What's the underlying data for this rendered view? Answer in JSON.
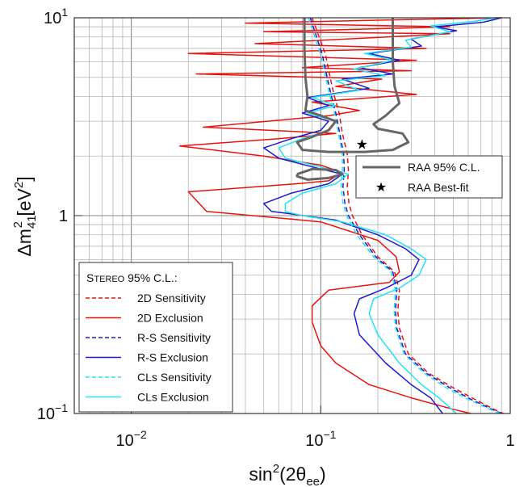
{
  "chart_data": {
    "type": "line",
    "title": "",
    "xlabel": {
      "base": "sin",
      "sup": "2",
      "rest": "(2θ",
      "sub": "ee",
      "close": ")"
    },
    "ylabel": {
      "base": "Δm",
      "sub": "41",
      "sup": "2",
      "unit": " [eV",
      "unit_sup": "2",
      "unit_close": "]"
    },
    "xscale": "log",
    "yscale": "log",
    "xlim": [
      0.005,
      1
    ],
    "ylim": [
      0.1,
      10
    ],
    "x_ticks": [
      {
        "value": 0.01,
        "base": "10",
        "exp": "−2"
      },
      {
        "value": 0.1,
        "base": "10",
        "exp": "−1"
      },
      {
        "value": 1,
        "base": "1",
        "exp": ""
      }
    ],
    "y_ticks": [
      {
        "value": 10,
        "base": "10",
        "exp": "1"
      },
      {
        "value": 1,
        "base": "1",
        "exp": ""
      },
      {
        "value": 0.1,
        "base": "10",
        "exp": "−1"
      }
    ],
    "grid": true,
    "stereo_legend": {
      "title_prefix": "S",
      "title_smallcaps": "TEREO",
      "title_suffix": " 95% C.L.:",
      "placement": "bottom-left"
    },
    "raa_legend": {
      "placement": "middle-right"
    },
    "series": [
      {
        "name": "2D Sensitivity",
        "color": "#e8130f",
        "dash": true,
        "points": [
          [
            0.09,
            10
          ],
          [
            0.098,
            8
          ],
          [
            0.106,
            6.5
          ],
          [
            0.112,
            5
          ],
          [
            0.118,
            4
          ],
          [
            0.125,
            3.3
          ],
          [
            0.13,
            2.6
          ],
          [
            0.138,
            2.05
          ],
          [
            0.14,
            1.7
          ],
          [
            0.138,
            1.4
          ],
          [
            0.141,
            1.15
          ],
          [
            0.147,
            1.0
          ],
          [
            0.165,
            0.8
          ],
          [
            0.2,
            0.62
          ],
          [
            0.245,
            0.52
          ],
          [
            0.26,
            0.42
          ],
          [
            0.255,
            0.33
          ],
          [
            0.26,
            0.27
          ],
          [
            0.29,
            0.2
          ],
          [
            0.37,
            0.16
          ],
          [
            0.5,
            0.135
          ],
          [
            0.65,
            0.118
          ],
          [
            0.82,
            0.105
          ],
          [
            0.92,
            0.1
          ]
        ]
      },
      {
        "name": "2D Exclusion",
        "color": "#e8130f",
        "dash": false,
        "points": [
          [
            0.9,
            10
          ],
          [
            0.3,
            9.8
          ],
          [
            0.04,
            9.4
          ],
          [
            0.48,
            9.0
          ],
          [
            0.05,
            8.5
          ],
          [
            0.48,
            8.3
          ],
          [
            0.045,
            7.4
          ],
          [
            0.36,
            7.0
          ],
          [
            0.02,
            6.6
          ],
          [
            0.32,
            6.1
          ],
          [
            0.08,
            5.6
          ],
          [
            0.3,
            5.4
          ],
          [
            0.022,
            5.2
          ],
          [
            0.21,
            4.9
          ],
          [
            0.12,
            4.5
          ],
          [
            0.32,
            4.1
          ],
          [
            0.09,
            3.75
          ],
          [
            0.16,
            3.4
          ],
          [
            0.11,
            3.2
          ],
          [
            0.024,
            2.8
          ],
          [
            0.12,
            2.6
          ],
          [
            0.06,
            2.45
          ],
          [
            0.018,
            2.25
          ],
          [
            0.05,
            2.0
          ],
          [
            0.1,
            1.8
          ],
          [
            0.13,
            1.65
          ],
          [
            0.11,
            1.5
          ],
          [
            0.075,
            1.45
          ],
          [
            0.02,
            1.32
          ],
          [
            0.025,
            1.05
          ],
          [
            0.1,
            0.93
          ],
          [
            0.2,
            0.75
          ],
          [
            0.25,
            0.62
          ],
          [
            0.26,
            0.52
          ],
          [
            0.23,
            0.46
          ],
          [
            0.11,
            0.42
          ],
          [
            0.09,
            0.35
          ],
          [
            0.09,
            0.29
          ],
          [
            0.1,
            0.22
          ],
          [
            0.12,
            0.18
          ],
          [
            0.18,
            0.14
          ],
          [
            0.3,
            0.12
          ],
          [
            0.5,
            0.105
          ],
          [
            0.62,
            0.1
          ]
        ]
      },
      {
        "name": "R-S Sensitivity",
        "color": "#1a1ad0",
        "dash": true,
        "points": [
          [
            0.088,
            10
          ],
          [
            0.095,
            8
          ],
          [
            0.102,
            6.5
          ],
          [
            0.108,
            5
          ],
          [
            0.114,
            4
          ],
          [
            0.12,
            3.3
          ],
          [
            0.126,
            2.6
          ],
          [
            0.132,
            2.05
          ],
          [
            0.133,
            1.7
          ],
          [
            0.131,
            1.4
          ],
          [
            0.134,
            1.15
          ],
          [
            0.14,
            1.0
          ],
          [
            0.16,
            0.8
          ],
          [
            0.195,
            0.62
          ],
          [
            0.24,
            0.52
          ],
          [
            0.252,
            0.42
          ],
          [
            0.248,
            0.33
          ],
          [
            0.252,
            0.27
          ],
          [
            0.28,
            0.2
          ],
          [
            0.36,
            0.16
          ],
          [
            0.48,
            0.135
          ],
          [
            0.62,
            0.118
          ],
          [
            0.8,
            0.105
          ],
          [
            0.9,
            0.1
          ]
        ]
      },
      {
        "name": "R-S Exclusion",
        "color": "#1a1ad0",
        "dash": false,
        "points": [
          [
            0.9,
            10
          ],
          [
            0.72,
            9.5
          ],
          [
            0.4,
            9.0
          ],
          [
            0.52,
            8.6
          ],
          [
            0.3,
            7.8
          ],
          [
            0.34,
            7.2
          ],
          [
            0.18,
            6.6
          ],
          [
            0.26,
            6.1
          ],
          [
            0.16,
            5.6
          ],
          [
            0.24,
            5.2
          ],
          [
            0.13,
            4.9
          ],
          [
            0.18,
            4.4
          ],
          [
            0.085,
            3.95
          ],
          [
            0.11,
            3.6
          ],
          [
            0.08,
            3.3
          ],
          [
            0.11,
            3.0
          ],
          [
            0.1,
            2.7
          ],
          [
            0.07,
            2.45
          ],
          [
            0.05,
            2.2
          ],
          [
            0.06,
            1.95
          ],
          [
            0.1,
            1.72
          ],
          [
            0.13,
            1.62
          ],
          [
            0.11,
            1.45
          ],
          [
            0.07,
            1.3
          ],
          [
            0.05,
            1.15
          ],
          [
            0.055,
            1.05
          ],
          [
            0.07,
            1.02
          ],
          [
            0.12,
            0.95
          ],
          [
            0.2,
            0.8
          ],
          [
            0.28,
            0.68
          ],
          [
            0.33,
            0.6
          ],
          [
            0.3,
            0.5
          ],
          [
            0.22,
            0.43
          ],
          [
            0.16,
            0.38
          ],
          [
            0.15,
            0.32
          ],
          [
            0.16,
            0.25
          ],
          [
            0.22,
            0.18
          ],
          [
            0.3,
            0.14
          ],
          [
            0.38,
            0.12
          ],
          [
            0.44,
            0.1
          ]
        ]
      },
      {
        "name": "CLs Sensitivity",
        "color": "#22e4f2",
        "dash": true,
        "points": [
          [
            0.086,
            10
          ],
          [
            0.093,
            8
          ],
          [
            0.1,
            6.5
          ],
          [
            0.106,
            5
          ],
          [
            0.112,
            4
          ],
          [
            0.118,
            3.3
          ],
          [
            0.124,
            2.6
          ],
          [
            0.13,
            2.05
          ],
          [
            0.13,
            1.7
          ],
          [
            0.128,
            1.4
          ],
          [
            0.131,
            1.15
          ],
          [
            0.137,
            1.0
          ],
          [
            0.155,
            0.8
          ],
          [
            0.19,
            0.62
          ],
          [
            0.235,
            0.52
          ],
          [
            0.248,
            0.42
          ],
          [
            0.244,
            0.33
          ],
          [
            0.248,
            0.27
          ],
          [
            0.275,
            0.2
          ],
          [
            0.35,
            0.16
          ],
          [
            0.46,
            0.135
          ],
          [
            0.6,
            0.118
          ],
          [
            0.78,
            0.105
          ],
          [
            0.88,
            0.1
          ]
        ]
      },
      {
        "name": "CLs Exclusion",
        "color": "#22e4f2",
        "dash": false,
        "points": [
          [
            0.85,
            10
          ],
          [
            0.65,
            9.6
          ],
          [
            0.38,
            9.1
          ],
          [
            0.48,
            8.5
          ],
          [
            0.28,
            7.7
          ],
          [
            0.3,
            7.1
          ],
          [
            0.17,
            6.6
          ],
          [
            0.24,
            6.1
          ],
          [
            0.15,
            5.5
          ],
          [
            0.22,
            5.1
          ],
          [
            0.12,
            4.8
          ],
          [
            0.16,
            4.3
          ],
          [
            0.09,
            3.95
          ],
          [
            0.12,
            3.6
          ],
          [
            0.085,
            3.3
          ],
          [
            0.12,
            3.0
          ],
          [
            0.11,
            2.7
          ],
          [
            0.08,
            2.45
          ],
          [
            0.06,
            2.2
          ],
          [
            0.065,
            1.95
          ],
          [
            0.11,
            1.72
          ],
          [
            0.14,
            1.62
          ],
          [
            0.12,
            1.45
          ],
          [
            0.08,
            1.3
          ],
          [
            0.065,
            1.15
          ],
          [
            0.065,
            1.05
          ],
          [
            0.08,
            1.0
          ],
          [
            0.13,
            0.93
          ],
          [
            0.22,
            0.8
          ],
          [
            0.3,
            0.68
          ],
          [
            0.36,
            0.6
          ],
          [
            0.33,
            0.5
          ],
          [
            0.26,
            0.43
          ],
          [
            0.19,
            0.38
          ],
          [
            0.18,
            0.32
          ],
          [
            0.2,
            0.25
          ],
          [
            0.26,
            0.18
          ],
          [
            0.34,
            0.14
          ],
          [
            0.42,
            0.12
          ],
          [
            0.52,
            0.1
          ]
        ]
      }
    ],
    "raa_region": {
      "name": "RAA 95% C.L.",
      "color": "#666666",
      "contours": [
        [
          [
            0.082,
            10
          ],
          [
            0.082,
            7
          ],
          [
            0.083,
            5
          ],
          [
            0.085,
            4
          ],
          [
            0.083,
            3.4
          ],
          [
            0.1,
            3.2
          ],
          [
            0.12,
            3.0
          ],
          [
            0.11,
            2.7
          ],
          [
            0.09,
            2.5
          ],
          [
            0.075,
            2.35
          ],
          [
            0.08,
            2.15
          ],
          [
            0.11,
            2.1
          ],
          [
            0.17,
            2.1
          ],
          [
            0.24,
            2.15
          ],
          [
            0.29,
            2.35
          ],
          [
            0.27,
            2.6
          ],
          [
            0.2,
            2.75
          ],
          [
            0.19,
            2.9
          ],
          [
            0.22,
            3.2
          ],
          [
            0.26,
            3.7
          ],
          [
            0.245,
            4.5
          ],
          [
            0.24,
            6
          ],
          [
            0.24,
            8
          ],
          [
            0.24,
            10
          ]
        ],
        [
          [
            0.075,
            1.62
          ],
          [
            0.09,
            1.72
          ],
          [
            0.12,
            1.7
          ],
          [
            0.13,
            1.62
          ],
          [
            0.11,
            1.55
          ],
          [
            0.085,
            1.52
          ],
          [
            0.075,
            1.58
          ],
          [
            0.075,
            1.62
          ]
        ]
      ]
    },
    "best_fit": {
      "name": "RAA Best-fit",
      "x": 0.165,
      "y": 2.3,
      "marker": "star",
      "color": "#000000"
    }
  }
}
